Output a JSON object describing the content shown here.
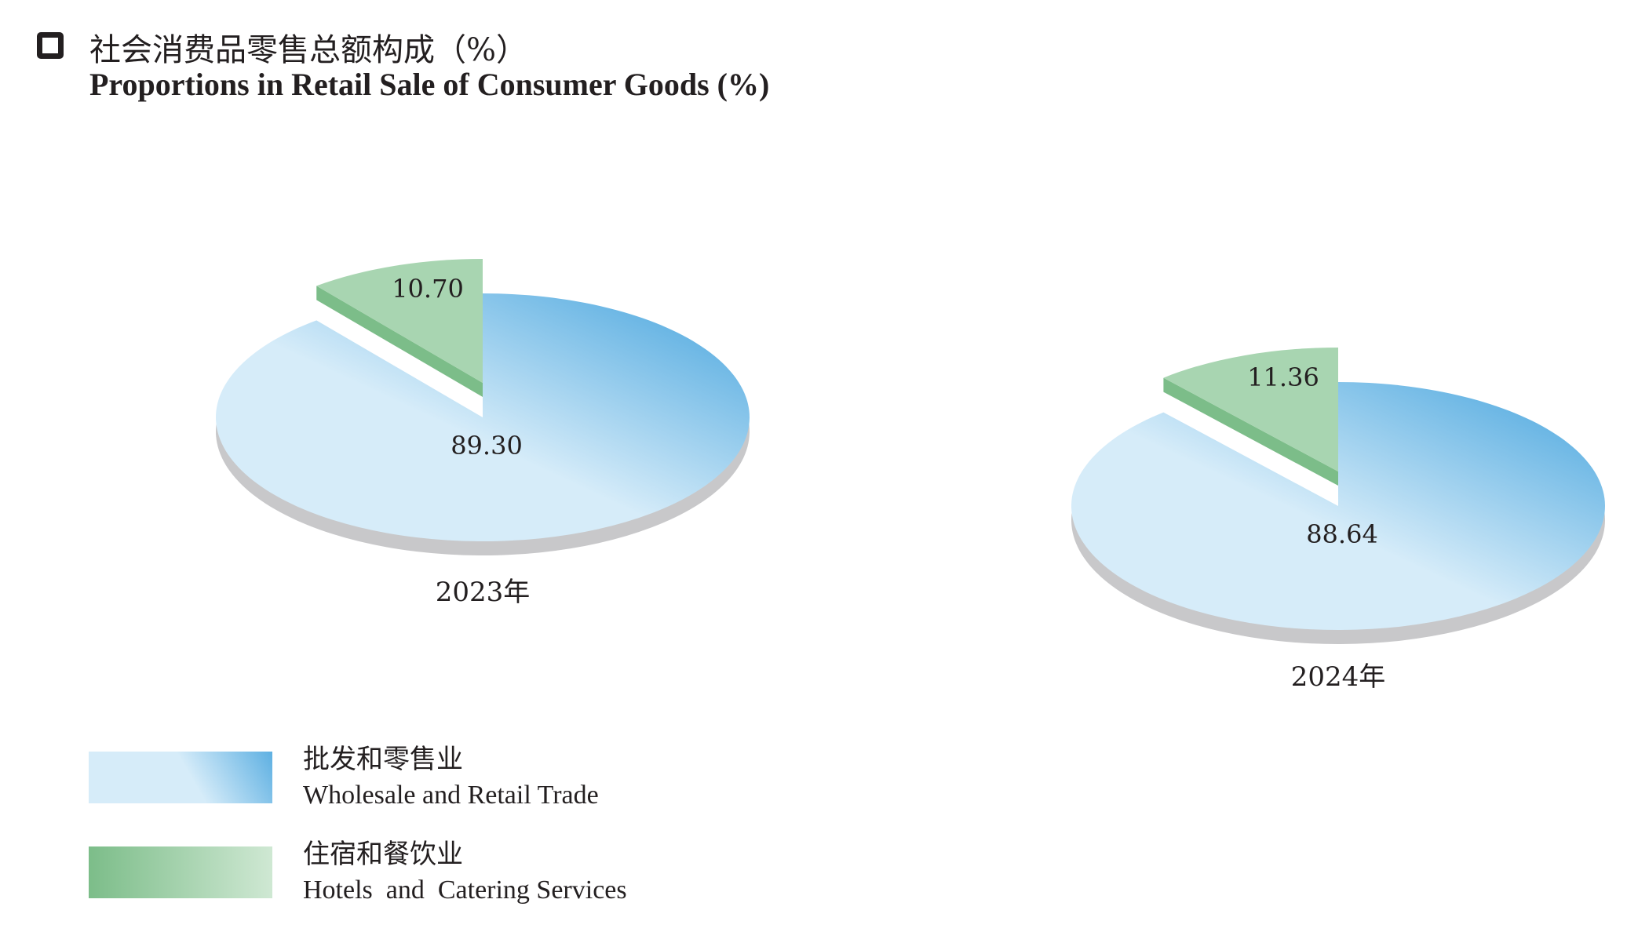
{
  "title": {
    "cn": "社会消费品零售总额构成（%）",
    "en": "Proportions in Retail Sale of Consumer Goods (%)"
  },
  "legend": [
    {
      "cn": "批发和零售业",
      "en": "Wholesale and Retail Trade"
    },
    {
      "cn": "住宿和餐饮业",
      "en": "Hotels  and  Catering Services"
    }
  ],
  "colors": {
    "wholesale_light": "#d6ecf9",
    "wholesale_dark": "#5eb0e2",
    "hotels_light": "#a8d5b1",
    "hotels_dark": "#7cbd89",
    "shadow": "#c8c8ca"
  },
  "chart_data": [
    {
      "type": "pie",
      "year_label": "2023年",
      "slices": [
        {
          "label": "89.30",
          "value": 89.3,
          "series": "Wholesale and Retail Trade"
        },
        {
          "label": "10.70",
          "value": 10.7,
          "series": "Hotels and Catering Services"
        }
      ]
    },
    {
      "type": "pie",
      "year_label": "2024年",
      "slices": [
        {
          "label": "88.64",
          "value": 88.64,
          "series": "Wholesale and Retail Trade"
        },
        {
          "label": "11.36",
          "value": 11.36,
          "series": "Hotels and Catering Services"
        }
      ]
    }
  ]
}
